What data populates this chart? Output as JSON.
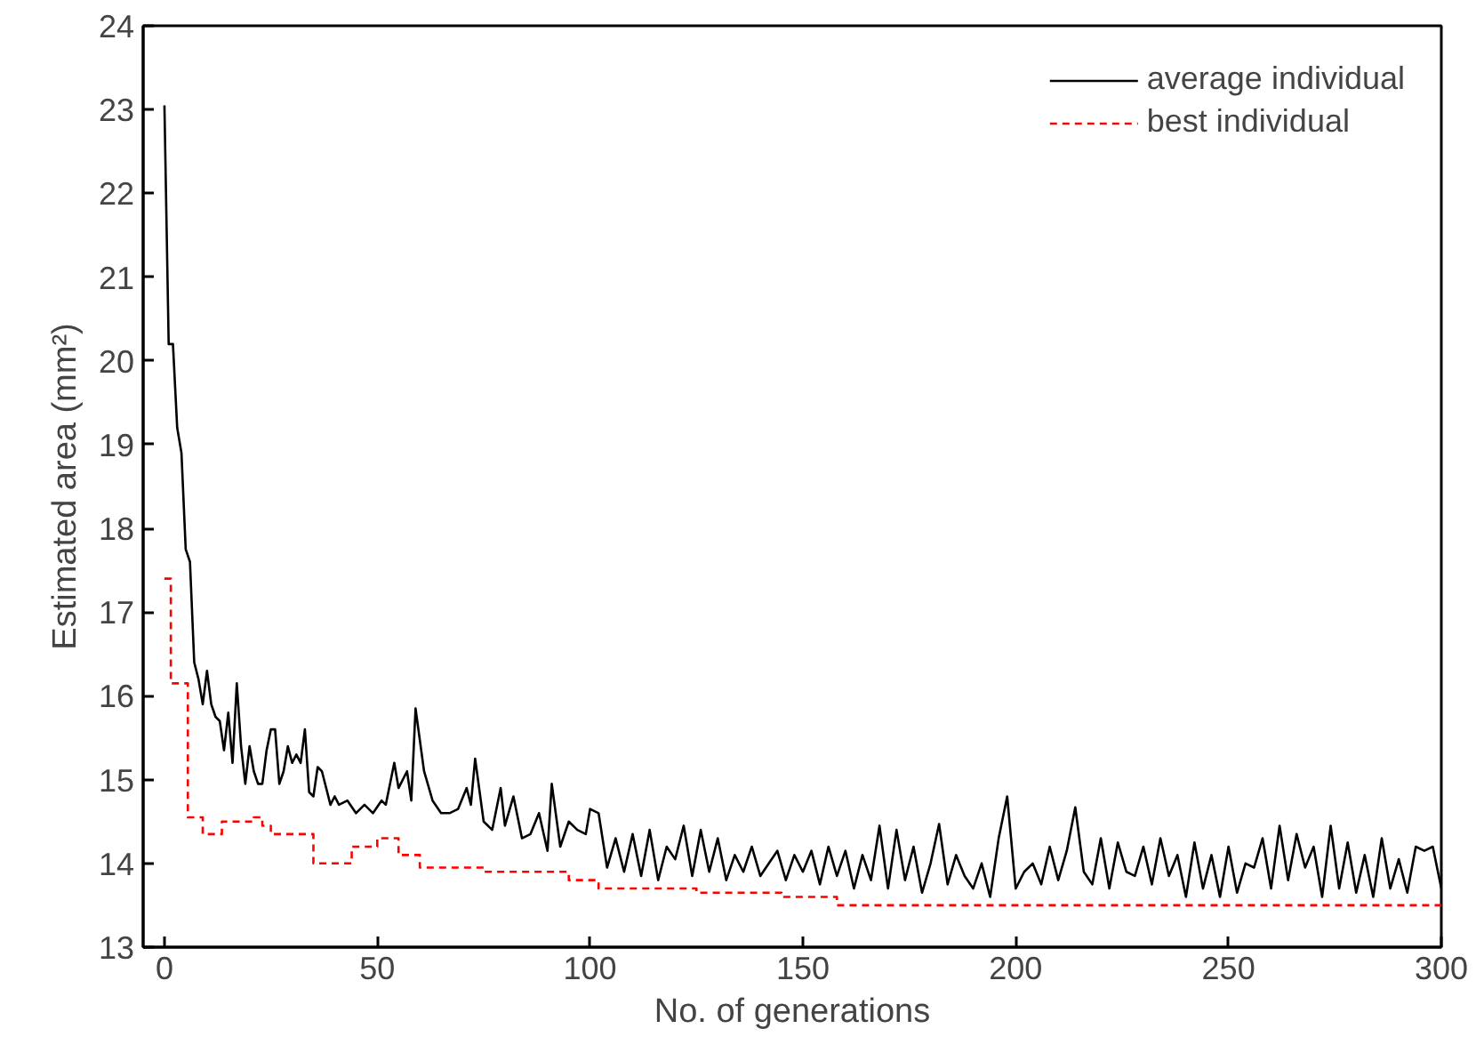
{
  "chart_data": {
    "type": "line",
    "xlabel": "No. of generations",
    "ylabel": "Estimated area (mm²)",
    "xlim": [
      -5,
      300
    ],
    "ylim": [
      13,
      24
    ],
    "xticks": [
      0,
      50,
      100,
      150,
      200,
      250,
      300
    ],
    "yticks": [
      13,
      14,
      15,
      16,
      17,
      18,
      19,
      20,
      21,
      22,
      23,
      24
    ],
    "grid": false,
    "legend": "top right",
    "marker": "none",
    "series": [
      {
        "name": "average individual",
        "color": "#000000",
        "line_style": "solid",
        "x": [
          0,
          1,
          2,
          3,
          4,
          5,
          6,
          7,
          8,
          9,
          10,
          11,
          12,
          13,
          14,
          15,
          16,
          17,
          18,
          19,
          20,
          21,
          22,
          23,
          24,
          25,
          26,
          27,
          28,
          29,
          30,
          31,
          32,
          33,
          34,
          35,
          36,
          37,
          38,
          39,
          40,
          41,
          43,
          45,
          47,
          49,
          51,
          52,
          54,
          55,
          57,
          58,
          59,
          61,
          63,
          65,
          67,
          69,
          71,
          72,
          73,
          75,
          77,
          79,
          80,
          82,
          84,
          86,
          88,
          90,
          91,
          93,
          95,
          97,
          99,
          100,
          102,
          104,
          106,
          108,
          110,
          112,
          114,
          116,
          118,
          120,
          122,
          124,
          126,
          128,
          130,
          132,
          134,
          136,
          138,
          140,
          142,
          144,
          146,
          148,
          150,
          152,
          154,
          156,
          158,
          160,
          162,
          164,
          166,
          168,
          170,
          172,
          174,
          176,
          178,
          180,
          182,
          184,
          186,
          188,
          190,
          192,
          194,
          196,
          198,
          200,
          202,
          204,
          206,
          208,
          210,
          212,
          214,
          216,
          218,
          220,
          222,
          224,
          226,
          228,
          230,
          232,
          234,
          236,
          238,
          240,
          242,
          244,
          246,
          248,
          250,
          252,
          254,
          256,
          258,
          260,
          262,
          264,
          266,
          268,
          270,
          272,
          274,
          276,
          278,
          280,
          282,
          284,
          286,
          288,
          290,
          292,
          294,
          296,
          298,
          300
        ],
        "values": [
          23.05,
          20.2,
          20.2,
          19.2,
          18.9,
          17.75,
          17.6,
          16.4,
          16.2,
          15.9,
          16.3,
          15.9,
          15.75,
          15.7,
          15.35,
          15.8,
          15.2,
          16.15,
          15.4,
          14.95,
          15.4,
          15.1,
          14.95,
          14.95,
          15.35,
          15.6,
          15.6,
          14.95,
          15.1,
          15.4,
          15.2,
          15.3,
          15.2,
          15.6,
          14.85,
          14.8,
          15.15,
          15.1,
          14.9,
          14.7,
          14.8,
          14.7,
          14.75,
          14.6,
          14.7,
          14.6,
          14.75,
          14.7,
          15.2,
          14.9,
          15.1,
          14.75,
          15.85,
          15.1,
          14.75,
          14.6,
          14.6,
          14.65,
          14.9,
          14.7,
          15.25,
          14.5,
          14.4,
          14.9,
          14.45,
          14.8,
          14.3,
          14.35,
          14.6,
          14.15,
          14.95,
          14.2,
          14.5,
          14.4,
          14.35,
          14.65,
          14.6,
          13.95,
          14.3,
          13.9,
          14.35,
          13.85,
          14.4,
          13.8,
          14.2,
          14.05,
          14.45,
          13.85,
          14.4,
          13.9,
          14.3,
          13.8,
          14.1,
          13.9,
          14.2,
          13.85,
          14.0,
          14.15,
          13.8,
          14.1,
          13.9,
          14.15,
          13.75,
          14.2,
          13.85,
          14.15,
          13.7,
          14.1,
          13.8,
          14.45,
          13.7,
          14.4,
          13.8,
          14.2,
          13.65,
          14.0,
          14.47,
          13.75,
          14.1,
          13.85,
          13.7,
          14.0,
          13.6,
          14.3,
          14.8,
          13.7,
          13.9,
          14.0,
          13.75,
          14.2,
          13.8,
          14.15,
          14.67,
          13.9,
          13.75,
          14.3,
          13.7,
          14.25,
          13.9,
          13.85,
          14.2,
          13.75,
          14.3,
          13.85,
          14.1,
          13.6,
          14.25,
          13.7,
          14.1,
          13.6,
          14.2,
          13.65,
          14.0,
          13.95,
          14.3,
          13.7,
          14.45,
          13.8,
          14.35,
          13.95,
          14.2,
          13.6,
          14.45,
          13.7,
          14.25,
          13.65,
          14.1,
          13.6,
          14.3,
          13.7,
          14.05,
          13.65,
          14.2,
          14.15,
          14.2,
          13.7
        ]
      },
      {
        "name": "best individual",
        "color": "#ff0000",
        "line_style": "dashed",
        "x": [
          0,
          1.5,
          1.5,
          5.5,
          5.5,
          9,
          9,
          13.5,
          13.5,
          21,
          21,
          23,
          23,
          25,
          25,
          35,
          35,
          36,
          36,
          44,
          44,
          50,
          50,
          55,
          55,
          58,
          58,
          60,
          60,
          75,
          75,
          95,
          95,
          102,
          102,
          125,
          125,
          145,
          145,
          158,
          158,
          300
        ],
        "values": [
          17.4,
          17.4,
          16.15,
          16.15,
          14.55,
          14.55,
          14.35,
          14.35,
          14.5,
          14.5,
          14.55,
          14.55,
          14.45,
          14.45,
          14.35,
          14.35,
          14.0,
          14.0,
          14.0,
          14.0,
          14.2,
          14.2,
          14.3,
          14.3,
          14.1,
          14.1,
          14.1,
          14.1,
          13.95,
          13.95,
          13.9,
          13.9,
          13.8,
          13.8,
          13.7,
          13.7,
          13.65,
          13.65,
          13.6,
          13.6,
          13.5,
          13.5
        ]
      }
    ]
  }
}
